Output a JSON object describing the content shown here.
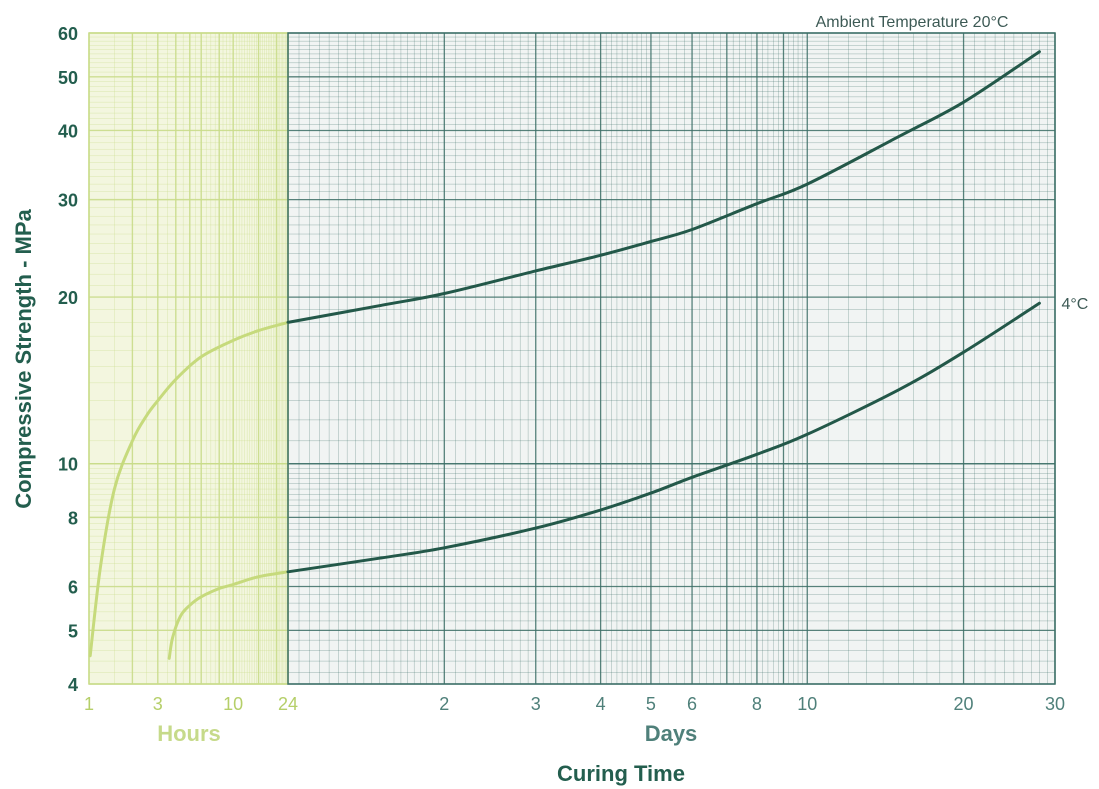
{
  "chart_data": {
    "type": "line",
    "title": "",
    "annotation": "Ambient Temperature 20°C",
    "ylabel": "Compressive Strength - MPa",
    "xlabel": "Curing Time",
    "x_scale": "log",
    "y_scale": "log",
    "ylim": [
      4,
      60
    ],
    "hours_range": [
      1,
      24
    ],
    "days_range": [
      1,
      30
    ],
    "grid": true,
    "colors": {
      "hours": "#c9dc8a",
      "hours_text": "#b5cf69",
      "hours_bg": "#f3f6df",
      "days": "#3b6e66",
      "days_text": "#4f807a",
      "days_bg": "#f1f4f3",
      "axis_title": "#235e4e",
      "curve_hours": "#c6da7c",
      "curve_days": "#235849"
    },
    "y_ticks": [
      {
        "v": 4,
        "label": "4"
      },
      {
        "v": 5,
        "label": "5"
      },
      {
        "v": 6,
        "label": "6"
      },
      {
        "v": 8,
        "label": "8"
      },
      {
        "v": 10,
        "label": "10"
      },
      {
        "v": 20,
        "label": "20"
      },
      {
        "v": 30,
        "label": "30"
      },
      {
        "v": 40,
        "label": "40"
      },
      {
        "v": 50,
        "label": "50"
      },
      {
        "v": 60,
        "label": "60"
      }
    ],
    "x_ticks_hours": [
      {
        "v": 1,
        "label": "1"
      },
      {
        "v": 3,
        "label": "3"
      },
      {
        "v": 10,
        "label": "10"
      },
      {
        "v": 24,
        "label": "24"
      }
    ],
    "x_ticks_days": [
      {
        "v": 2,
        "label": "2"
      },
      {
        "v": 3,
        "label": "3"
      },
      {
        "v": 4,
        "label": "4"
      },
      {
        "v": 5,
        "label": "5"
      },
      {
        "v": 6,
        "label": "6"
      },
      {
        "v": 8,
        "label": "8"
      },
      {
        "v": 10,
        "label": "10"
      },
      {
        "v": 20,
        "label": "20"
      },
      {
        "v": 30,
        "label": "30"
      }
    ],
    "hours_label": "Hours",
    "days_label": "Days",
    "series": [
      {
        "name": "",
        "label": "",
        "segments": {
          "hours": [
            [
              1.02,
              4.5
            ],
            [
              1.2,
              6.5
            ],
            [
              1.5,
              9.0
            ],
            [
              2.0,
              11.0
            ],
            [
              2.5,
              12.2
            ],
            [
              3.0,
              13.0
            ],
            [
              4.0,
              14.2
            ],
            [
              6.0,
              15.6
            ],
            [
              10.0,
              16.7
            ],
            [
              15.0,
              17.4
            ],
            [
              24.0,
              18.0
            ]
          ],
          "days": [
            [
              1.0,
              18.0
            ],
            [
              1.5,
              19.3
            ],
            [
              2.0,
              20.3
            ],
            [
              3.0,
              22.3
            ],
            [
              4.0,
              23.8
            ],
            [
              5.0,
              25.2
            ],
            [
              6.0,
              26.5
            ],
            [
              8.0,
              29.5
            ],
            [
              10.0,
              32.0
            ],
            [
              15.0,
              39.0
            ],
            [
              20.0,
              45.0
            ],
            [
              28.0,
              55.5
            ]
          ]
        }
      },
      {
        "name": "",
        "label": "4°C",
        "segments": {
          "hours": [
            [
              3.6,
              4.45
            ],
            [
              3.8,
              4.85
            ],
            [
              4.3,
              5.3
            ],
            [
              5.0,
              5.55
            ],
            [
              6.0,
              5.75
            ],
            [
              8.0,
              5.95
            ],
            [
              10.0,
              6.05
            ],
            [
              15.0,
              6.25
            ],
            [
              24.0,
              6.38
            ]
          ],
          "days": [
            [
              1.0,
              6.38
            ],
            [
              1.5,
              6.75
            ],
            [
              2.0,
              7.05
            ],
            [
              3.0,
              7.65
            ],
            [
              4.0,
              8.25
            ],
            [
              5.0,
              8.85
            ],
            [
              6.0,
              9.45
            ],
            [
              8.0,
              10.4
            ],
            [
              10.0,
              11.3
            ],
            [
              15.0,
              13.6
            ],
            [
              20.0,
              15.9
            ],
            [
              28.0,
              19.5
            ]
          ]
        }
      }
    ]
  }
}
